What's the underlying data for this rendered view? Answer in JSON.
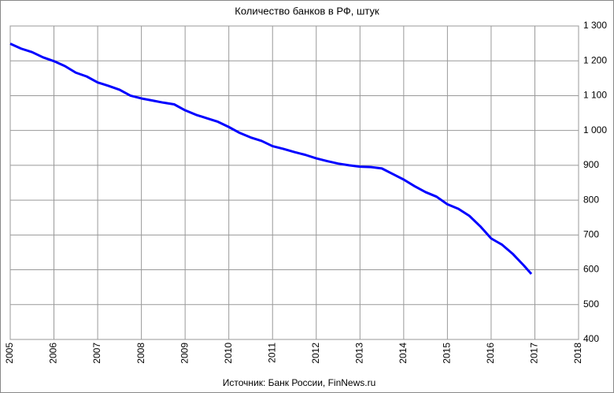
{
  "chart_data": {
    "type": "line",
    "title": "Количество  банков  в РФ, штук",
    "source": "Источник: Банк России, FinNews.ru",
    "x": [
      2005.0,
      2005.25,
      2005.5,
      2005.75,
      2006.0,
      2006.25,
      2006.5,
      2006.75,
      2007.0,
      2007.25,
      2007.5,
      2007.75,
      2008.0,
      2008.25,
      2008.5,
      2008.75,
      2009.0,
      2009.25,
      2009.5,
      2009.75,
      2010.0,
      2010.25,
      2010.5,
      2010.75,
      2011.0,
      2011.25,
      2011.5,
      2011.75,
      2012.0,
      2012.25,
      2012.5,
      2012.75,
      2013.0,
      2013.25,
      2013.5,
      2013.75,
      2014.0,
      2014.25,
      2014.5,
      2014.75,
      2015.0,
      2015.25,
      2015.5,
      2015.75,
      2016.0,
      2016.25,
      2016.5,
      2016.75,
      2016.92
    ],
    "series": [
      {
        "name": "Количество банков",
        "color": "#0000ff",
        "values": [
          1249,
          1235,
          1225,
          1210,
          1199,
          1185,
          1166,
          1155,
          1138,
          1128,
          1117,
          1100,
          1092,
          1086,
          1080,
          1075,
          1058,
          1045,
          1035,
          1025,
          1010,
          993,
          980,
          970,
          955,
          947,
          938,
          930,
          920,
          912,
          905,
          900,
          896,
          895,
          891,
          875,
          859,
          840,
          823,
          810,
          788,
          775,
          755,
          725,
          690,
          672,
          645,
          612,
          588
        ]
      }
    ],
    "xlim": [
      2005,
      2018
    ],
    "xticks": [
      2005,
      2006,
      2007,
      2008,
      2009,
      2010,
      2011,
      2012,
      2013,
      2014,
      2015,
      2016,
      2017,
      2018
    ],
    "ylim": [
      400,
      1300
    ],
    "yticks": [
      400,
      500,
      600,
      700,
      800,
      900,
      {
        "value": 1000,
        "label": "1 000"
      },
      {
        "value": 1100,
        "label": "1 100"
      },
      {
        "value": 1200,
        "label": "1 200"
      },
      {
        "value": 1300,
        "label": "1 300"
      }
    ],
    "grid": true
  }
}
